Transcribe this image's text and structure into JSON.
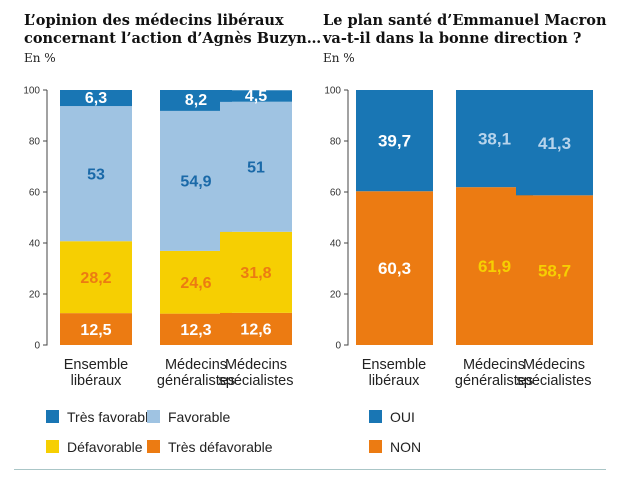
{
  "colors": {
    "tres_favorable": "#1976b4",
    "favorable": "#9fc3e2",
    "defavorable": "#f6cf02",
    "tres_defavorable": "#ec7b12",
    "oui": "#1976b4",
    "non": "#ec7b12"
  },
  "chart_data": [
    {
      "type": "bar",
      "stacked": true,
      "title": "L’opinion des médecins libéraux concernant l’action d’Agnès Buzyn…",
      "title_lines": [
        "L’opinion des médecins libéraux",
        "concernant l’action d’Agnès Buzyn…"
      ],
      "unit_label": "En %",
      "categories": [
        "Ensemble libéraux",
        "Médecins généralistes",
        "Médecins spécialistes"
      ],
      "category_lines": [
        [
          "Ensemble",
          "libéraux"
        ],
        [
          "Médecins",
          "généralistes"
        ],
        [
          "Médecins",
          "spécialistes"
        ]
      ],
      "ylim": [
        0,
        100
      ],
      "yticks": [
        0,
        20,
        40,
        60,
        80,
        100
      ],
      "legend_position": "bottom",
      "series": [
        {
          "name": "Très défavorable",
          "key": "tres_defavorable",
          "values": [
            12.5,
            12.3,
            12.6
          ],
          "labels": [
            "12,5",
            "12,3",
            "12,6"
          ]
        },
        {
          "name": "Défavorable",
          "key": "defavorable",
          "values": [
            28.2,
            24.6,
            31.8
          ],
          "labels": [
            "28,2",
            "24,6",
            "31,8"
          ]
        },
        {
          "name": "Favorable",
          "key": "favorable",
          "values": [
            53,
            54.9,
            51
          ],
          "labels": [
            "53",
            "54,9",
            "51"
          ]
        },
        {
          "name": "Très favorable",
          "key": "tres_favorable",
          "values": [
            6.3,
            8.2,
            4.5
          ],
          "labels": [
            "6,3",
            "8,2",
            "4,5"
          ]
        }
      ],
      "legend": [
        {
          "name": "Très favorable",
          "key": "tres_favorable"
        },
        {
          "name": "Favorable",
          "key": "favorable"
        },
        {
          "name": "Défavorable",
          "key": "defavorable"
        },
        {
          "name": "Très défavorable",
          "key": "tres_defavorable"
        }
      ]
    },
    {
      "type": "bar",
      "stacked": true,
      "title": "Le plan santé d’Emmanuel Macron va-t-il dans la bonne direction ?",
      "title_lines": [
        "Le plan santé d’Emmanuel Macron",
        "va-t-il dans la bonne direction ?"
      ],
      "unit_label": "En %",
      "categories": [
        "Ensemble libéraux",
        "Médecins généralistes",
        "Médecins spécialistes"
      ],
      "category_lines": [
        [
          "Ensemble",
          "libéraux"
        ],
        [
          "Médecins",
          "généralistes"
        ],
        [
          "Médecins",
          "spécialistes"
        ]
      ],
      "ylim": [
        0,
        100
      ],
      "yticks": [
        0,
        20,
        40,
        60,
        80,
        100
      ],
      "legend_position": "bottom",
      "series": [
        {
          "name": "NON",
          "key": "non",
          "values": [
            60.3,
            61.9,
            58.7
          ],
          "labels": [
            "60,3",
            "61,9",
            "58,7"
          ]
        },
        {
          "name": "OUI",
          "key": "oui",
          "values": [
            39.7,
            38.1,
            41.3
          ],
          "labels": [
            "39,7",
            "38,1",
            "41,3"
          ]
        }
      ],
      "legend": [
        {
          "name": "OUI",
          "key": "oui"
        },
        {
          "name": "NON",
          "key": "non"
        }
      ]
    }
  ]
}
